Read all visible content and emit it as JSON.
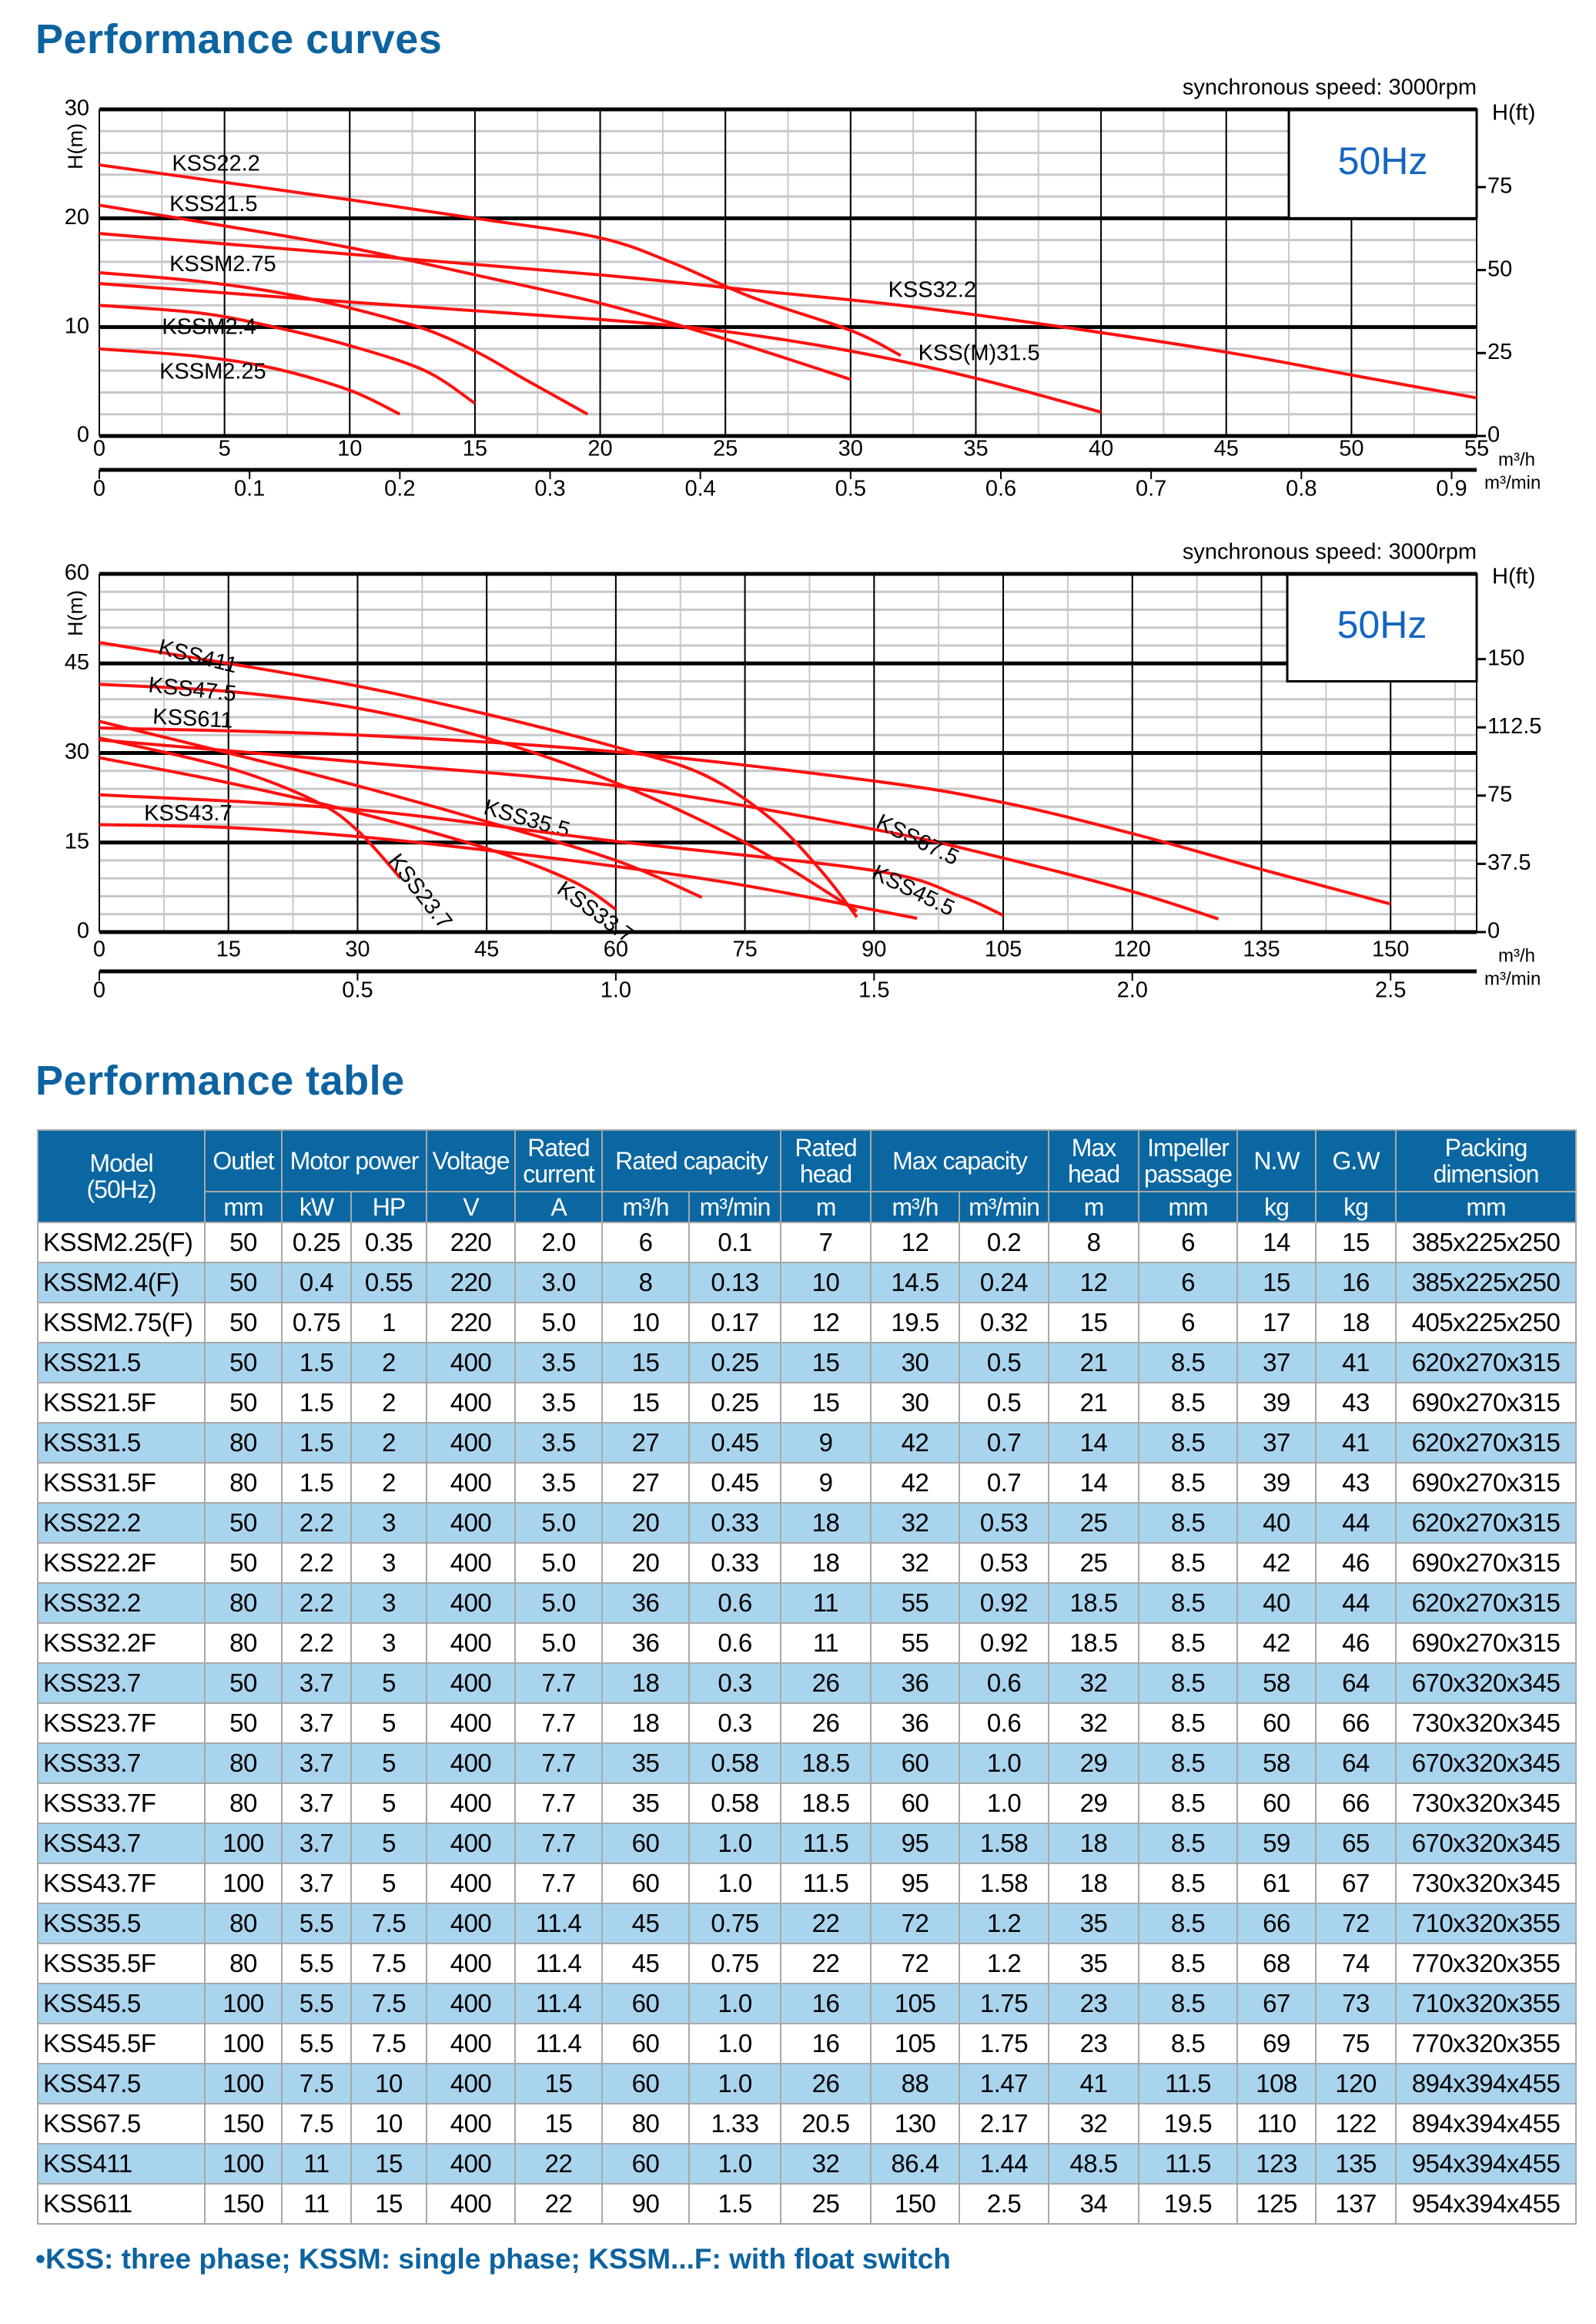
{
  "titles": {
    "curves": "Performance curves",
    "table": "Performance table"
  },
  "colors": {
    "brand": "#0d63a0",
    "curve": "#ff1010",
    "header_bg": "#0b67a2",
    "alt_row": "#a9d4ee",
    "freq_label": "#1565c0"
  },
  "chart_data": [
    {
      "type": "line",
      "annotation": "synchronous speed: 3000rpm",
      "frequency_box": "50Hz",
      "ylabel": "H(m)",
      "ylabel_right": "H(ft)",
      "xlabel": "m³/h",
      "xlabel2": "m³/min",
      "xlim": [
        0,
        55
      ],
      "ylim": [
        0,
        30
      ],
      "xticks": [
        0,
        5,
        10,
        15,
        20,
        25,
        30,
        35,
        40,
        45,
        50,
        55
      ],
      "yticks": [
        0,
        10,
        20,
        30
      ],
      "yticks_right_ft": [
        0,
        25,
        50,
        75
      ],
      "xticks2_m3min": [
        0,
        0.1,
        0.2,
        0.3,
        0.4,
        0.5,
        0.6,
        0.7,
        0.8,
        0.9
      ],
      "xticks2_labels": [
        "0",
        "0.1",
        "0.2",
        "0.3",
        "0.4",
        "0.5",
        "0.6",
        "0.7",
        "0.8",
        "0.9"
      ],
      "grid": true,
      "series": [
        {
          "name": "KSS22.2",
          "points": [
            [
              0,
              24.9
            ],
            [
              5,
              23.3
            ],
            [
              10,
              21.7
            ],
            [
              15,
              20
            ],
            [
              20,
              18.2
            ],
            [
              23,
              15.8
            ],
            [
              26,
              12.8
            ],
            [
              30,
              9.7
            ],
            [
              32,
              7.4
            ]
          ]
        },
        {
          "name": "KSS21.5",
          "points": [
            [
              0,
              21.2
            ],
            [
              5,
              19.3
            ],
            [
              10,
              17.3
            ],
            [
              15,
              14.8
            ],
            [
              20,
              12.2
            ],
            [
              25,
              8.9
            ],
            [
              30,
              5.2
            ]
          ]
        },
        {
          "name": "KSSM2.75",
          "points": [
            [
              0,
              15
            ],
            [
              4,
              14.2
            ],
            [
              8,
              12.8
            ],
            [
              12.5,
              10.2
            ],
            [
              15,
              7.8
            ],
            [
              17,
              5.2
            ],
            [
              19.5,
              2
            ]
          ]
        },
        {
          "name": "KSSM2.4",
          "points": [
            [
              0,
              12
            ],
            [
              4,
              11.3
            ],
            [
              7,
              10
            ],
            [
              10,
              8.3
            ],
            [
              13,
              6
            ],
            [
              15,
              3
            ]
          ]
        },
        {
          "name": "KSSM2.25",
          "points": [
            [
              0,
              8
            ],
            [
              4,
              7.3
            ],
            [
              7,
              6.2
            ],
            [
              10,
              4.2
            ],
            [
              12,
              2
            ]
          ]
        },
        {
          "name": "KSS32.2",
          "points": [
            [
              0,
              18.6
            ],
            [
              10,
              16.7
            ],
            [
              20,
              14.8
            ],
            [
              26,
              13.4
            ],
            [
              32,
              12
            ],
            [
              38.5,
              10
            ],
            [
              45,
              7.7
            ],
            [
              50,
              5.6
            ],
            [
              55,
              3.5
            ]
          ]
        },
        {
          "name": "KSS(M)31.5",
          "points": [
            [
              0,
              14
            ],
            [
              10,
              12.3
            ],
            [
              20,
              10.7
            ],
            [
              25,
              9.6
            ],
            [
              30,
              7.8
            ],
            [
              35,
              5.3
            ],
            [
              40,
              2.2
            ]
          ]
        }
      ]
    },
    {
      "type": "line",
      "annotation": "synchronous speed: 3000rpm",
      "frequency_box": "50Hz",
      "ylabel": "H(m)",
      "ylabel_right": "H(ft)",
      "xlabel": "m³/h",
      "xlabel2": "m³/min",
      "xlim": [
        0,
        160
      ],
      "ylim": [
        0,
        60
      ],
      "xticks": [
        0,
        15,
        30,
        45,
        60,
        75,
        90,
        105,
        120,
        135,
        150
      ],
      "yticks": [
        0,
        15,
        30,
        45,
        60
      ],
      "yticks_right_ft": [
        0,
        37.5,
        75,
        112.5,
        150
      ],
      "xticks2_m3min": [
        0,
        0.5,
        1.0,
        1.5,
        2.0,
        2.5
      ],
      "xticks2_labels": [
        "0",
        "0.5",
        "1.0",
        "1.5",
        "2.0",
        "2.5"
      ],
      "grid": true,
      "series": [
        {
          "name": "KSS411",
          "points": [
            [
              0,
              48.5
            ],
            [
              15,
              45
            ],
            [
              30,
              41.2
            ],
            [
              45,
              36.5
            ],
            [
              60,
              31
            ],
            [
              70,
              26.5
            ],
            [
              78,
              19
            ],
            [
              84,
              10
            ],
            [
              88,
              2.5
            ]
          ]
        },
        {
          "name": "KSS47.5",
          "points": [
            [
              0,
              41.5
            ],
            [
              15,
              40.3
            ],
            [
              30,
              37.5
            ],
            [
              45,
              32.5
            ],
            [
              60,
              25
            ],
            [
              75,
              15
            ],
            [
              88,
              3.5
            ]
          ]
        },
        {
          "name": "KSS611",
          "points": [
            [
              0,
              34.2
            ],
            [
              30,
              33
            ],
            [
              60,
              30.2
            ],
            [
              90,
              25.3
            ],
            [
              105,
              21.7
            ],
            [
              120,
              16.5
            ],
            [
              135,
              10.5
            ],
            [
              150,
              4.7
            ]
          ]
        },
        {
          "name": "KSS43.7",
          "points": [
            [
              0,
              18
            ],
            [
              15,
              17.5
            ],
            [
              30,
              16
            ],
            [
              45,
              13.7
            ],
            [
              60,
              11
            ],
            [
              75,
              7.8
            ],
            [
              95,
              2.3
            ]
          ]
        },
        {
          "name": "KSS35.5",
          "points": [
            [
              0,
              35.3
            ],
            [
              15,
              30
            ],
            [
              30,
              24.5
            ],
            [
              45,
              18.5
            ],
            [
              60,
              12
            ],
            [
              70,
              5.8
            ]
          ]
        },
        {
          "name": "KSS67.5",
          "points": [
            [
              0,
              32.2
            ],
            [
              30,
              28.5
            ],
            [
              60,
              24.5
            ],
            [
              90,
              17.2
            ],
            [
              105,
              12.4
            ],
            [
              120,
              6.8
            ],
            [
              130,
              2.2
            ]
          ]
        },
        {
          "name": "KSS45.5",
          "points": [
            [
              0,
              23
            ],
            [
              30,
              20.5
            ],
            [
              60,
              15.2
            ],
            [
              90,
              10.3
            ],
            [
              100,
              6
            ],
            [
              105,
              2.8
            ]
          ]
        },
        {
          "name": "KSS23.7",
          "points": [
            [
              0,
              32.5
            ],
            [
              15,
              27.5
            ],
            [
              25,
              22
            ],
            [
              30,
              17
            ],
            [
              35,
              9
            ]
          ]
        },
        {
          "name": "KSS33.7",
          "points": [
            [
              0,
              29.2
            ],
            [
              15,
              25
            ],
            [
              30,
              20
            ],
            [
              45,
              14
            ],
            [
              55,
              8.5
            ],
            [
              60,
              3.8
            ]
          ]
        }
      ]
    }
  ],
  "table": {
    "header_top": [
      {
        "label": "Model\n(50Hz)",
        "rowspan": 2,
        "colspan": 1
      },
      {
        "label": "Outlet",
        "colspan": 1
      },
      {
        "label": "Motor power",
        "colspan": 2
      },
      {
        "label": "Voltage",
        "colspan": 1
      },
      {
        "label": "Rated\ncurrent",
        "colspan": 1
      },
      {
        "label": "Rated capacity",
        "colspan": 2
      },
      {
        "label": "Rated\nhead",
        "colspan": 1
      },
      {
        "label": "Max capacity",
        "colspan": 2
      },
      {
        "label": "Max\nhead",
        "colspan": 1
      },
      {
        "label": "Impeller\npassage",
        "colspan": 1
      },
      {
        "label": "N.W",
        "colspan": 1
      },
      {
        "label": "G.W",
        "colspan": 1
      },
      {
        "label": "Packing\ndimension",
        "colspan": 1
      }
    ],
    "units": [
      "mm",
      "kW",
      "HP",
      "V",
      "A",
      "m³/h",
      "m³/min",
      "m",
      "m³/h",
      "m³/min",
      "m",
      "mm",
      "kg",
      "kg",
      "mm"
    ],
    "rows": [
      [
        "KSSM2.25(F)",
        "50",
        "0.25",
        "0.35",
        "220",
        "2.0",
        "6",
        "0.1",
        "7",
        "12",
        "0.2",
        "8",
        "6",
        "14",
        "15",
        "385x225x250"
      ],
      [
        "KSSM2.4(F)",
        "50",
        "0.4",
        "0.55",
        "220",
        "3.0",
        "8",
        "0.13",
        "10",
        "14.5",
        "0.24",
        "12",
        "6",
        "15",
        "16",
        "385x225x250"
      ],
      [
        "KSSM2.75(F)",
        "50",
        "0.75",
        "1",
        "220",
        "5.0",
        "10",
        "0.17",
        "12",
        "19.5",
        "0.32",
        "15",
        "6",
        "17",
        "18",
        "405x225x250"
      ],
      [
        "KSS21.5",
        "50",
        "1.5",
        "2",
        "400",
        "3.5",
        "15",
        "0.25",
        "15",
        "30",
        "0.5",
        "21",
        "8.5",
        "37",
        "41",
        "620x270x315"
      ],
      [
        "KSS21.5F",
        "50",
        "1.5",
        "2",
        "400",
        "3.5",
        "15",
        "0.25",
        "15",
        "30",
        "0.5",
        "21",
        "8.5",
        "39",
        "43",
        "690x270x315"
      ],
      [
        "KSS31.5",
        "80",
        "1.5",
        "2",
        "400",
        "3.5",
        "27",
        "0.45",
        "9",
        "42",
        "0.7",
        "14",
        "8.5",
        "37",
        "41",
        "620x270x315"
      ],
      [
        "KSS31.5F",
        "80",
        "1.5",
        "2",
        "400",
        "3.5",
        "27",
        "0.45",
        "9",
        "42",
        "0.7",
        "14",
        "8.5",
        "39",
        "43",
        "690x270x315"
      ],
      [
        "KSS22.2",
        "50",
        "2.2",
        "3",
        "400",
        "5.0",
        "20",
        "0.33",
        "18",
        "32",
        "0.53",
        "25",
        "8.5",
        "40",
        "44",
        "620x270x315"
      ],
      [
        "KSS22.2F",
        "50",
        "2.2",
        "3",
        "400",
        "5.0",
        "20",
        "0.33",
        "18",
        "32",
        "0.53",
        "25",
        "8.5",
        "42",
        "46",
        "690x270x315"
      ],
      [
        "KSS32.2",
        "80",
        "2.2",
        "3",
        "400",
        "5.0",
        "36",
        "0.6",
        "11",
        "55",
        "0.92",
        "18.5",
        "8.5",
        "40",
        "44",
        "620x270x315"
      ],
      [
        "KSS32.2F",
        "80",
        "2.2",
        "3",
        "400",
        "5.0",
        "36",
        "0.6",
        "11",
        "55",
        "0.92",
        "18.5",
        "8.5",
        "42",
        "46",
        "690x270x315"
      ],
      [
        "KSS23.7",
        "50",
        "3.7",
        "5",
        "400",
        "7.7",
        "18",
        "0.3",
        "26",
        "36",
        "0.6",
        "32",
        "8.5",
        "58",
        "64",
        "670x320x345"
      ],
      [
        "KSS23.7F",
        "50",
        "3.7",
        "5",
        "400",
        "7.7",
        "18",
        "0.3",
        "26",
        "36",
        "0.6",
        "32",
        "8.5",
        "60",
        "66",
        "730x320x345"
      ],
      [
        "KSS33.7",
        "80",
        "3.7",
        "5",
        "400",
        "7.7",
        "35",
        "0.58",
        "18.5",
        "60",
        "1.0",
        "29",
        "8.5",
        "58",
        "64",
        "670x320x345"
      ],
      [
        "KSS33.7F",
        "80",
        "3.7",
        "5",
        "400",
        "7.7",
        "35",
        "0.58",
        "18.5",
        "60",
        "1.0",
        "29",
        "8.5",
        "60",
        "66",
        "730x320x345"
      ],
      [
        "KSS43.7",
        "100",
        "3.7",
        "5",
        "400",
        "7.7",
        "60",
        "1.0",
        "11.5",
        "95",
        "1.58",
        "18",
        "8.5",
        "59",
        "65",
        "670x320x345"
      ],
      [
        "KSS43.7F",
        "100",
        "3.7",
        "5",
        "400",
        "7.7",
        "60",
        "1.0",
        "11.5",
        "95",
        "1.58",
        "18",
        "8.5",
        "61",
        "67",
        "730x320x345"
      ],
      [
        "KSS35.5",
        "80",
        "5.5",
        "7.5",
        "400",
        "11.4",
        "45",
        "0.75",
        "22",
        "72",
        "1.2",
        "35",
        "8.5",
        "66",
        "72",
        "710x320x355"
      ],
      [
        "KSS35.5F",
        "80",
        "5.5",
        "7.5",
        "400",
        "11.4",
        "45",
        "0.75",
        "22",
        "72",
        "1.2",
        "35",
        "8.5",
        "68",
        "74",
        "770x320x355"
      ],
      [
        "KSS45.5",
        "100",
        "5.5",
        "7.5",
        "400",
        "11.4",
        "60",
        "1.0",
        "16",
        "105",
        "1.75",
        "23",
        "8.5",
        "67",
        "73",
        "710x320x355"
      ],
      [
        "KSS45.5F",
        "100",
        "5.5",
        "7.5",
        "400",
        "11.4",
        "60",
        "1.0",
        "16",
        "105",
        "1.75",
        "23",
        "8.5",
        "69",
        "75",
        "770x320x355"
      ],
      [
        "KSS47.5",
        "100",
        "7.5",
        "10",
        "400",
        "15",
        "60",
        "1.0",
        "26",
        "88",
        "1.47",
        "41",
        "11.5",
        "108",
        "120",
        "894x394x455"
      ],
      [
        "KSS67.5",
        "150",
        "7.5",
        "10",
        "400",
        "15",
        "80",
        "1.33",
        "20.5",
        "130",
        "2.17",
        "32",
        "19.5",
        "110",
        "122",
        "894x394x455"
      ],
      [
        "KSS411",
        "100",
        "11",
        "15",
        "400",
        "22",
        "60",
        "1.0",
        "32",
        "86.4",
        "1.44",
        "48.5",
        "11.5",
        "123",
        "135",
        "954x394x455"
      ],
      [
        "KSS611",
        "150",
        "11",
        "15",
        "400",
        "22",
        "90",
        "1.5",
        "25",
        "150",
        "2.5",
        "34",
        "19.5",
        "125",
        "137",
        "954x394x455"
      ]
    ]
  },
  "footnote": "•KSS: three phase; KSSM: single phase;  KSSM...F: with float switch"
}
